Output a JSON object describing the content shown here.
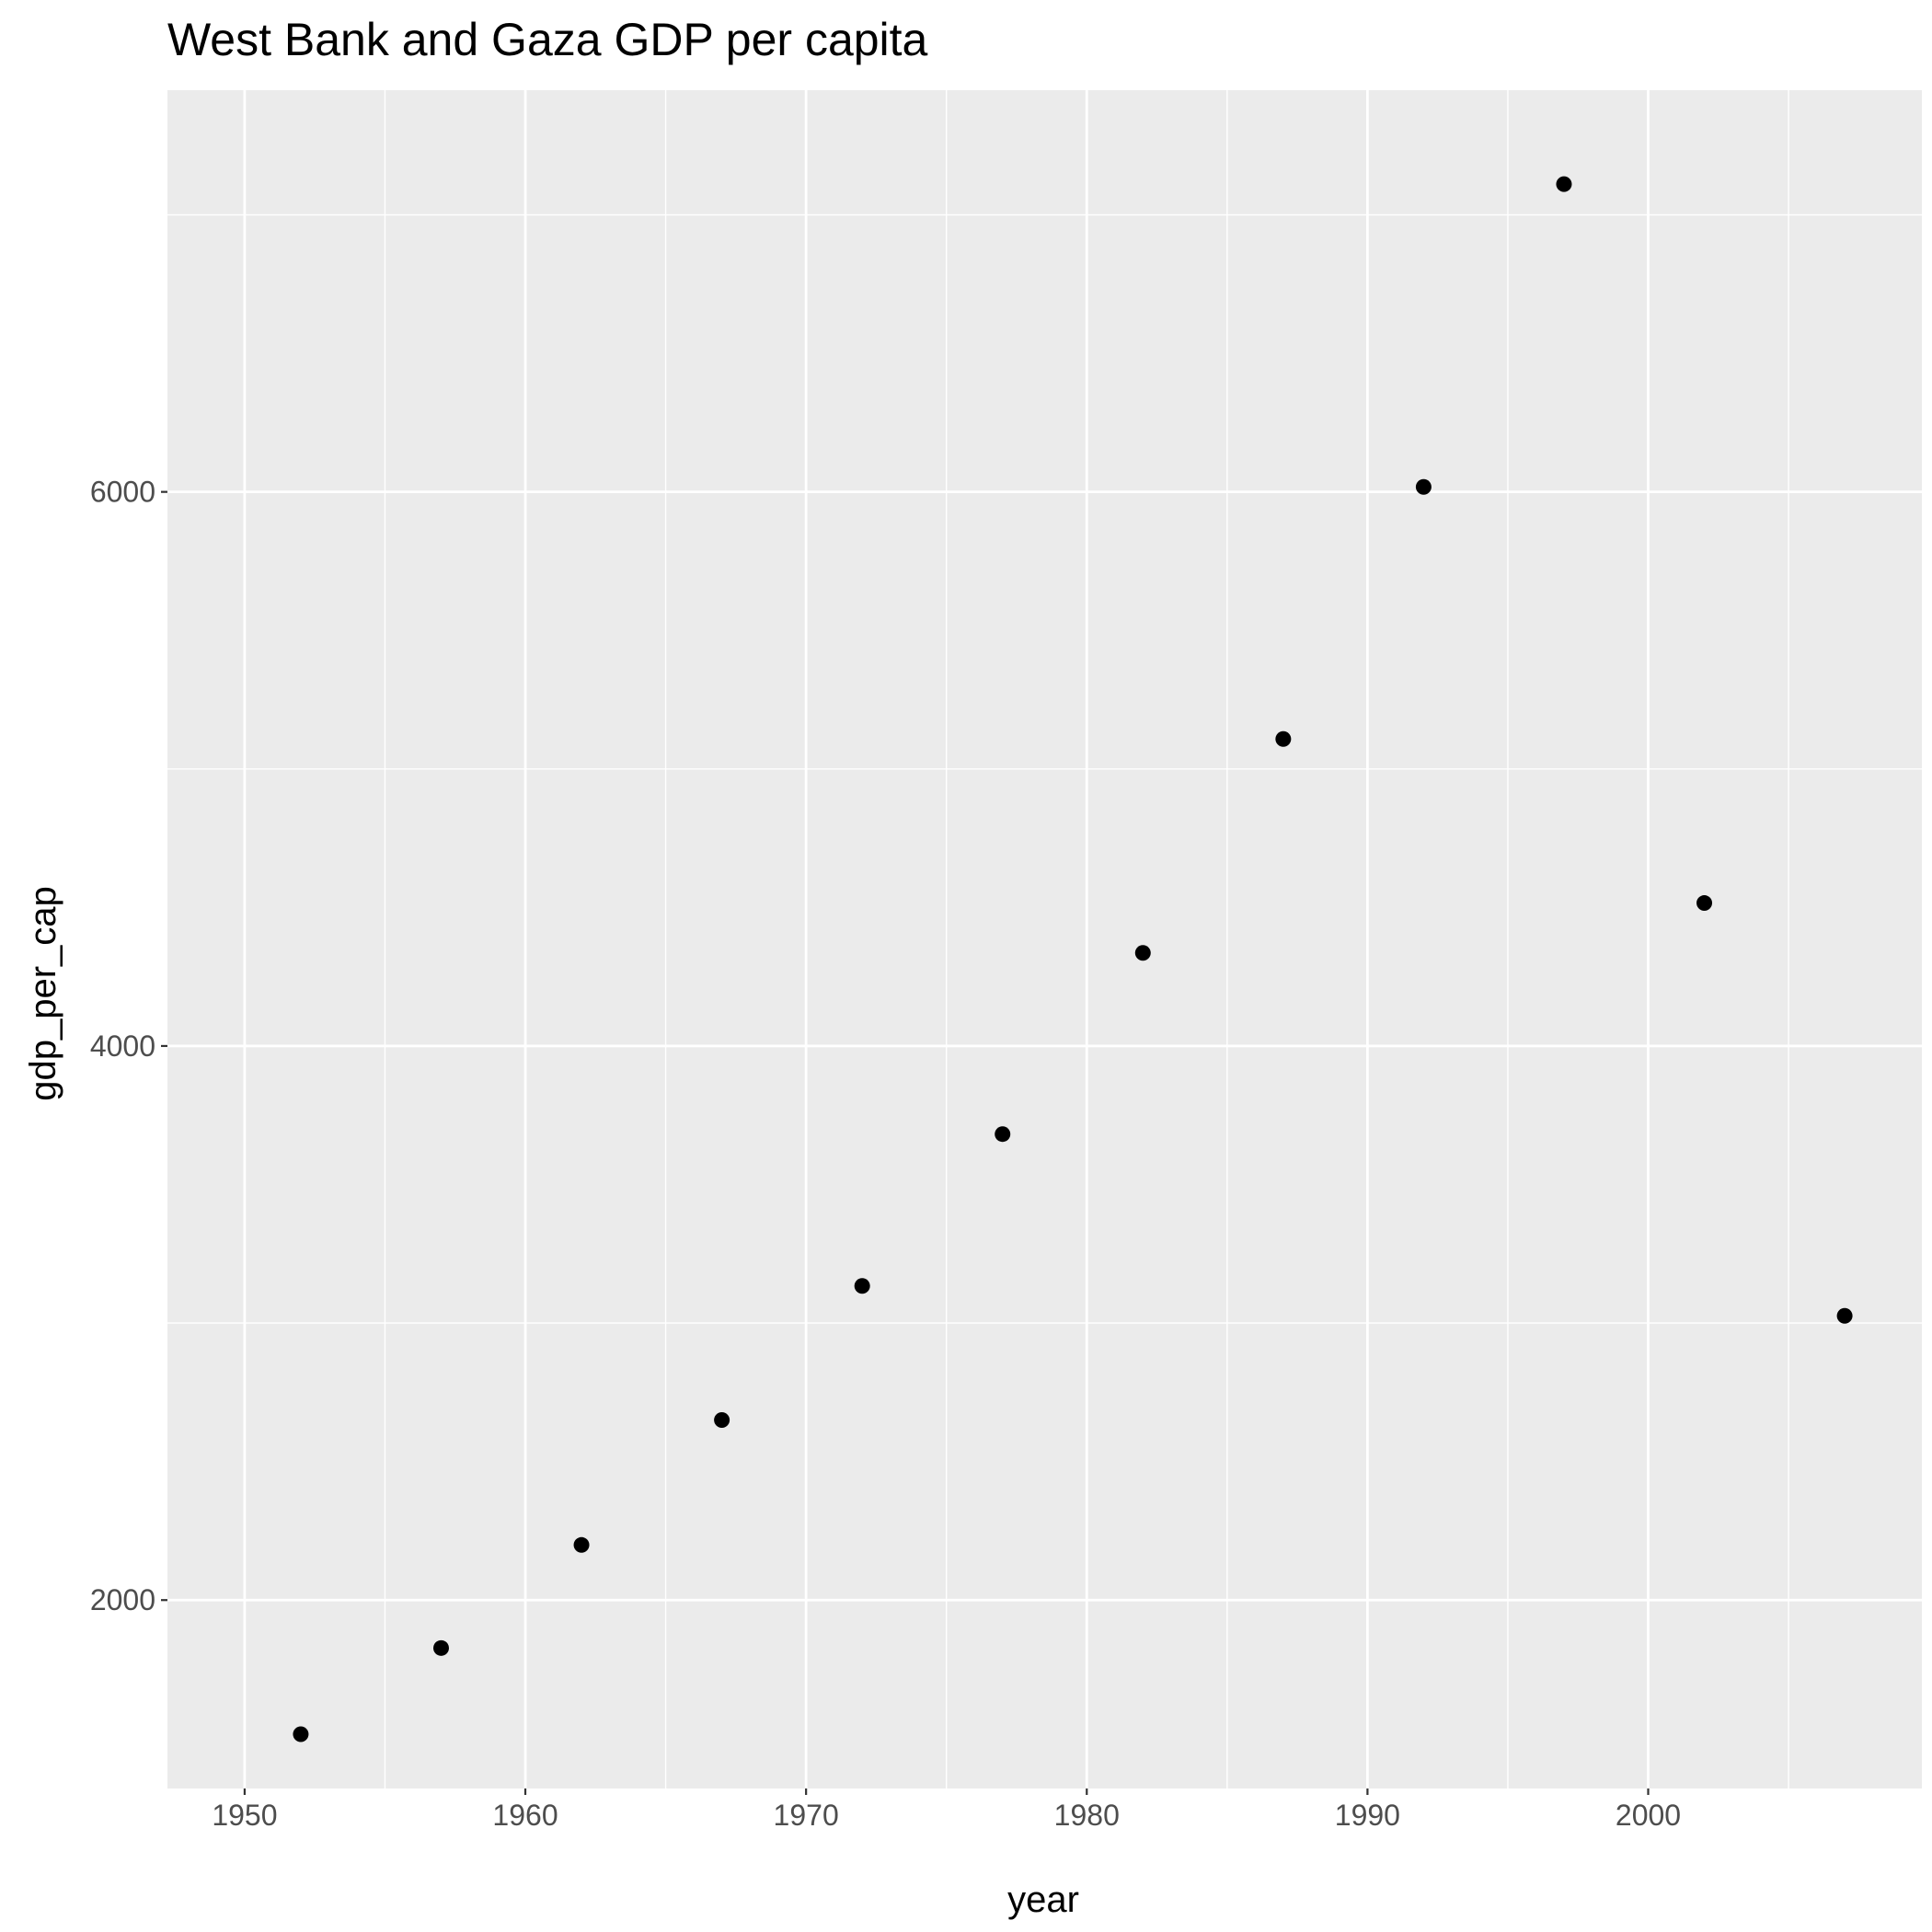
{
  "chart_data": {
    "type": "scatter",
    "title": "West Bank and Gaza GDP per capita",
    "xlabel": "year",
    "ylabel": "gdp_per_cap",
    "x": [
      1952,
      1957,
      1962,
      1967,
      1972,
      1977,
      1982,
      1987,
      1992,
      1997,
      2002,
      2007
    ],
    "y": [
      1516,
      1827,
      2199,
      2650,
      3134,
      3682,
      4336,
      5108,
      6018,
      7111,
      4516,
      3026
    ],
    "xlim": [
      1947.25,
      2009.75
    ],
    "ylim": [
      1320,
      7450
    ],
    "x_ticks": [
      1950,
      1960,
      1970,
      1980,
      1990,
      2000
    ],
    "x_tick_labels": [
      "1950",
      "1960",
      "1970",
      "1980",
      "1990",
      "2000"
    ],
    "x_minor_ticks": [
      1955,
      1965,
      1975,
      1985,
      1995,
      2005
    ],
    "y_ticks": [
      2000,
      4000,
      6000
    ],
    "y_tick_labels": [
      "2000",
      "4000",
      "6000"
    ],
    "y_minor_ticks": [
      3000,
      5000,
      7000
    ],
    "grid": true,
    "legend": "none",
    "colors": {
      "panel_background": "#ebebeb",
      "grid_major": "#ffffff",
      "grid_minor": "#ffffff",
      "point": "#000000",
      "tick_label": "#4d4d4d",
      "tick_mark": "#333333"
    }
  }
}
